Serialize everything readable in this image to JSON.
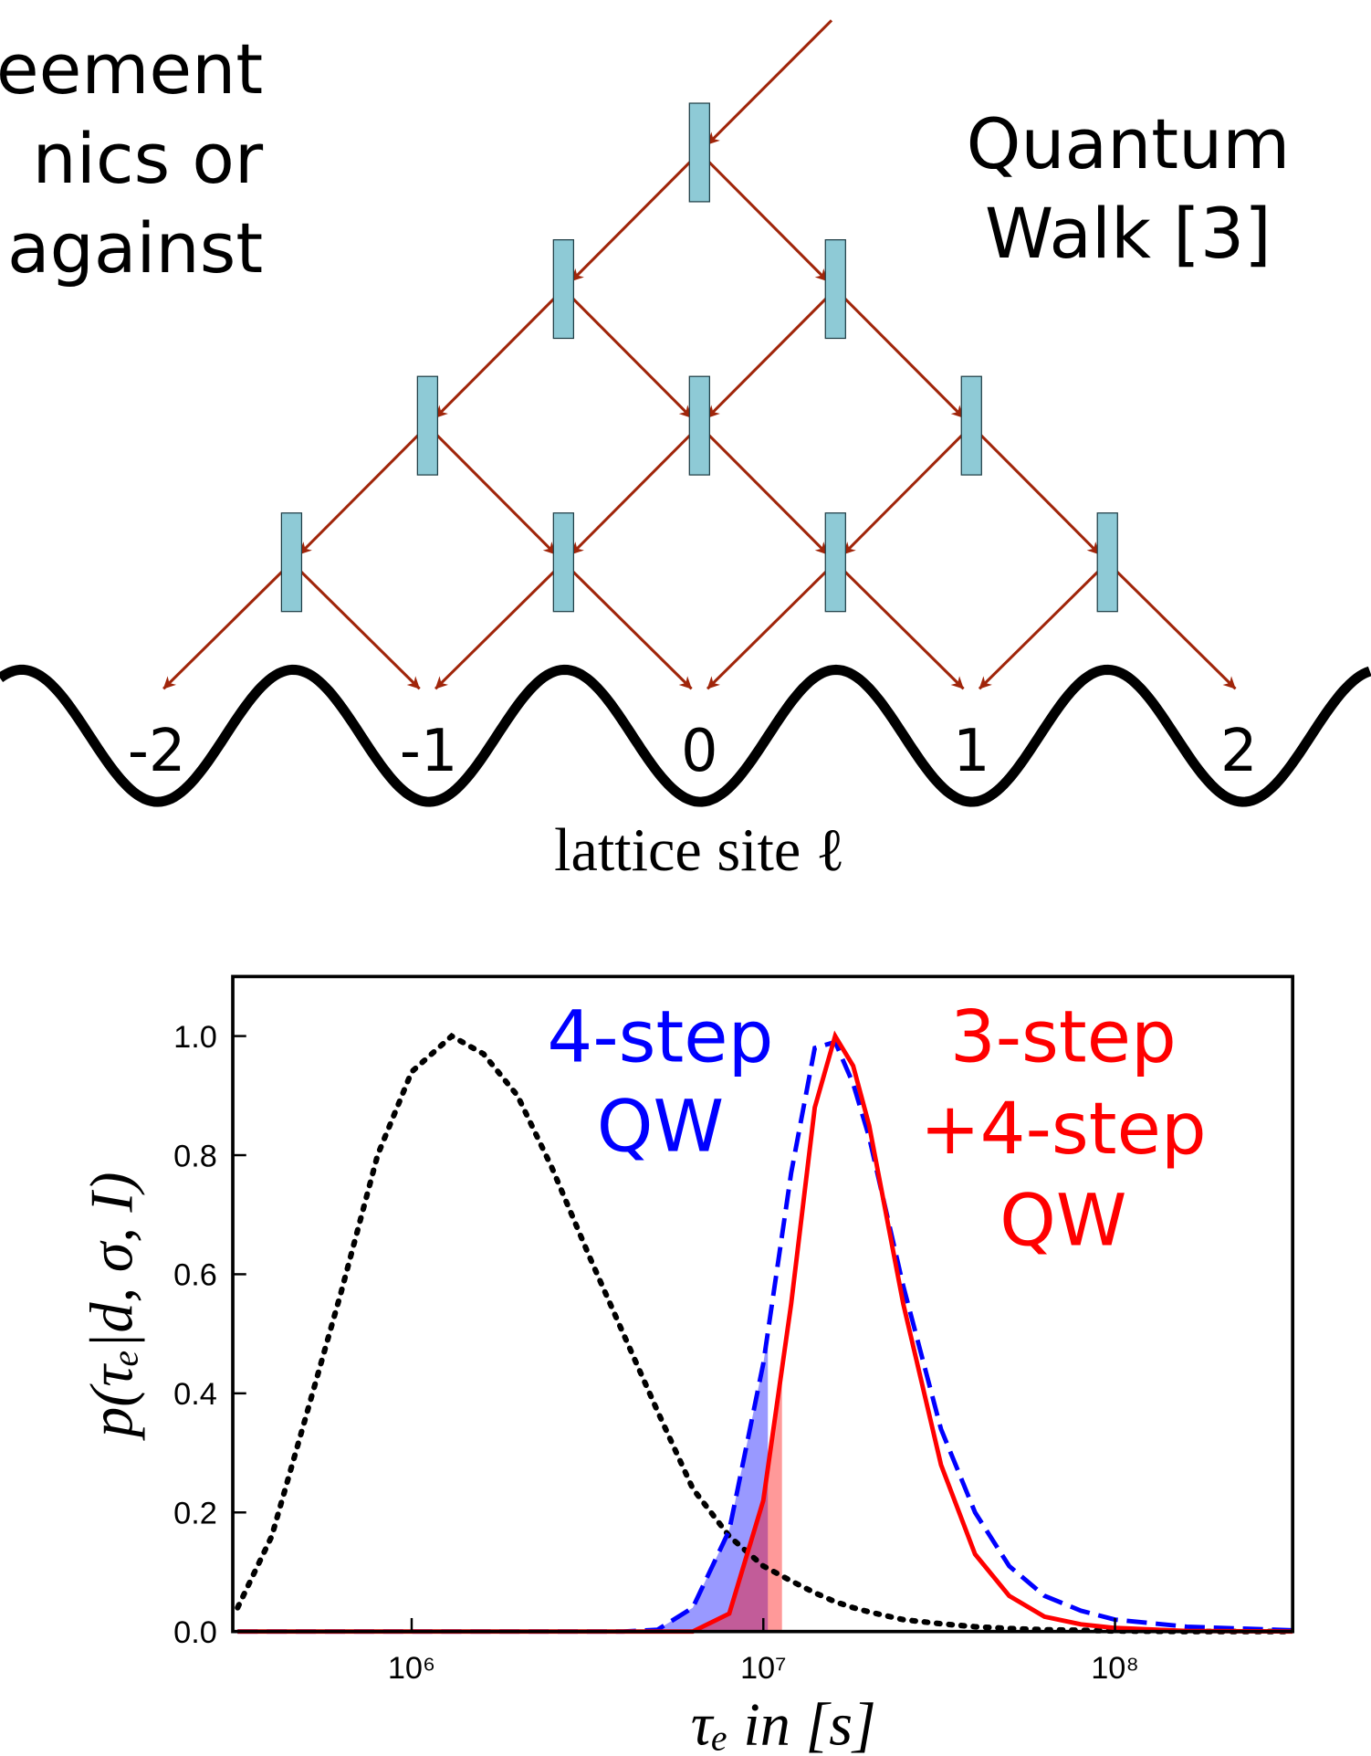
{
  "diagram": {
    "left_text": [
      "eement",
      "nics   or",
      "against"
    ],
    "right_text": [
      "Quantum",
      "Walk [3]"
    ],
    "sites": [
      "-2",
      "-1",
      "0",
      "1",
      "2"
    ],
    "axis_label": "lattice site ℓ"
  },
  "chart_data": {
    "type": "line",
    "xscale": "log",
    "xlabel": "τₑ in [s]",
    "ylabel": "p(τₑ|d, σ, I)",
    "xlim": [
      310000,
      320000000
    ],
    "ylim": [
      0,
      1.1
    ],
    "xticks": [
      {
        "value": 1000000,
        "label": "10⁶"
      },
      {
        "value": 10000000,
        "label": "10⁷"
      },
      {
        "value": 100000000,
        "label": "10⁸"
      }
    ],
    "yticks": [
      {
        "value": 0,
        "label": "0.0"
      },
      0.2,
      0.4,
      0.6,
      0.8,
      {
        "value": 1,
        "label": "1.0"
      }
    ],
    "x": [
      320000,
      400000,
      500000,
      630000,
      800000,
      1000000,
      1300000,
      1600000,
      2000000,
      2500000,
      3200000,
      4000000,
      5000000,
      6300000,
      8000000,
      10000000,
      12000000,
      14000000,
      16000000,
      18000000,
      20000000,
      25000000,
      32000000,
      40000000,
      50000000,
      63000000,
      80000000,
      100000000,
      160000000,
      320000000
    ],
    "series": [
      {
        "color": "#000000",
        "style": "dotted",
        "values": [
          0.04,
          0.16,
          0.36,
          0.57,
          0.8,
          0.94,
          1.0,
          0.97,
          0.9,
          0.78,
          0.63,
          0.5,
          0.37,
          0.24,
          0.16,
          0.11,
          0.085,
          0.065,
          0.05,
          0.04,
          0.033,
          0.02,
          0.013,
          0.008,
          0.005,
          0.003,
          0.002,
          0.001,
          0,
          0
        ]
      },
      {
        "color": "#0000ff",
        "style": "dashed",
        "fill_to": 10300000,
        "fill_opacity": 0.4,
        "values": [
          0,
          0,
          0,
          0,
          0,
          0,
          0,
          0,
          0,
          0,
          0,
          0,
          0.003,
          0.04,
          0.17,
          0.45,
          0.77,
          0.98,
          0.99,
          0.92,
          0.83,
          0.58,
          0.34,
          0.2,
          0.11,
          0.06,
          0.035,
          0.02,
          0.008,
          0.002
        ]
      },
      {
        "color": "#ff0000",
        "style": "solid",
        "fill_to": 11300000,
        "fill_opacity": 0.4,
        "values": [
          0,
          0,
          0,
          0,
          0,
          0,
          0,
          0,
          0,
          0,
          0,
          0,
          0,
          0,
          0.03,
          0.22,
          0.55,
          0.88,
          1.0,
          0.95,
          0.85,
          0.55,
          0.28,
          0.13,
          0.06,
          0.025,
          0.012,
          0.006,
          0.001,
          0
        ]
      }
    ],
    "annotations": [
      {
        "color": "#0000ff",
        "lines": [
          "4-step",
          "QW"
        ]
      },
      {
        "color": "#ff0000",
        "lines": [
          "3-step",
          "+4-step",
          "QW"
        ]
      }
    ]
  }
}
